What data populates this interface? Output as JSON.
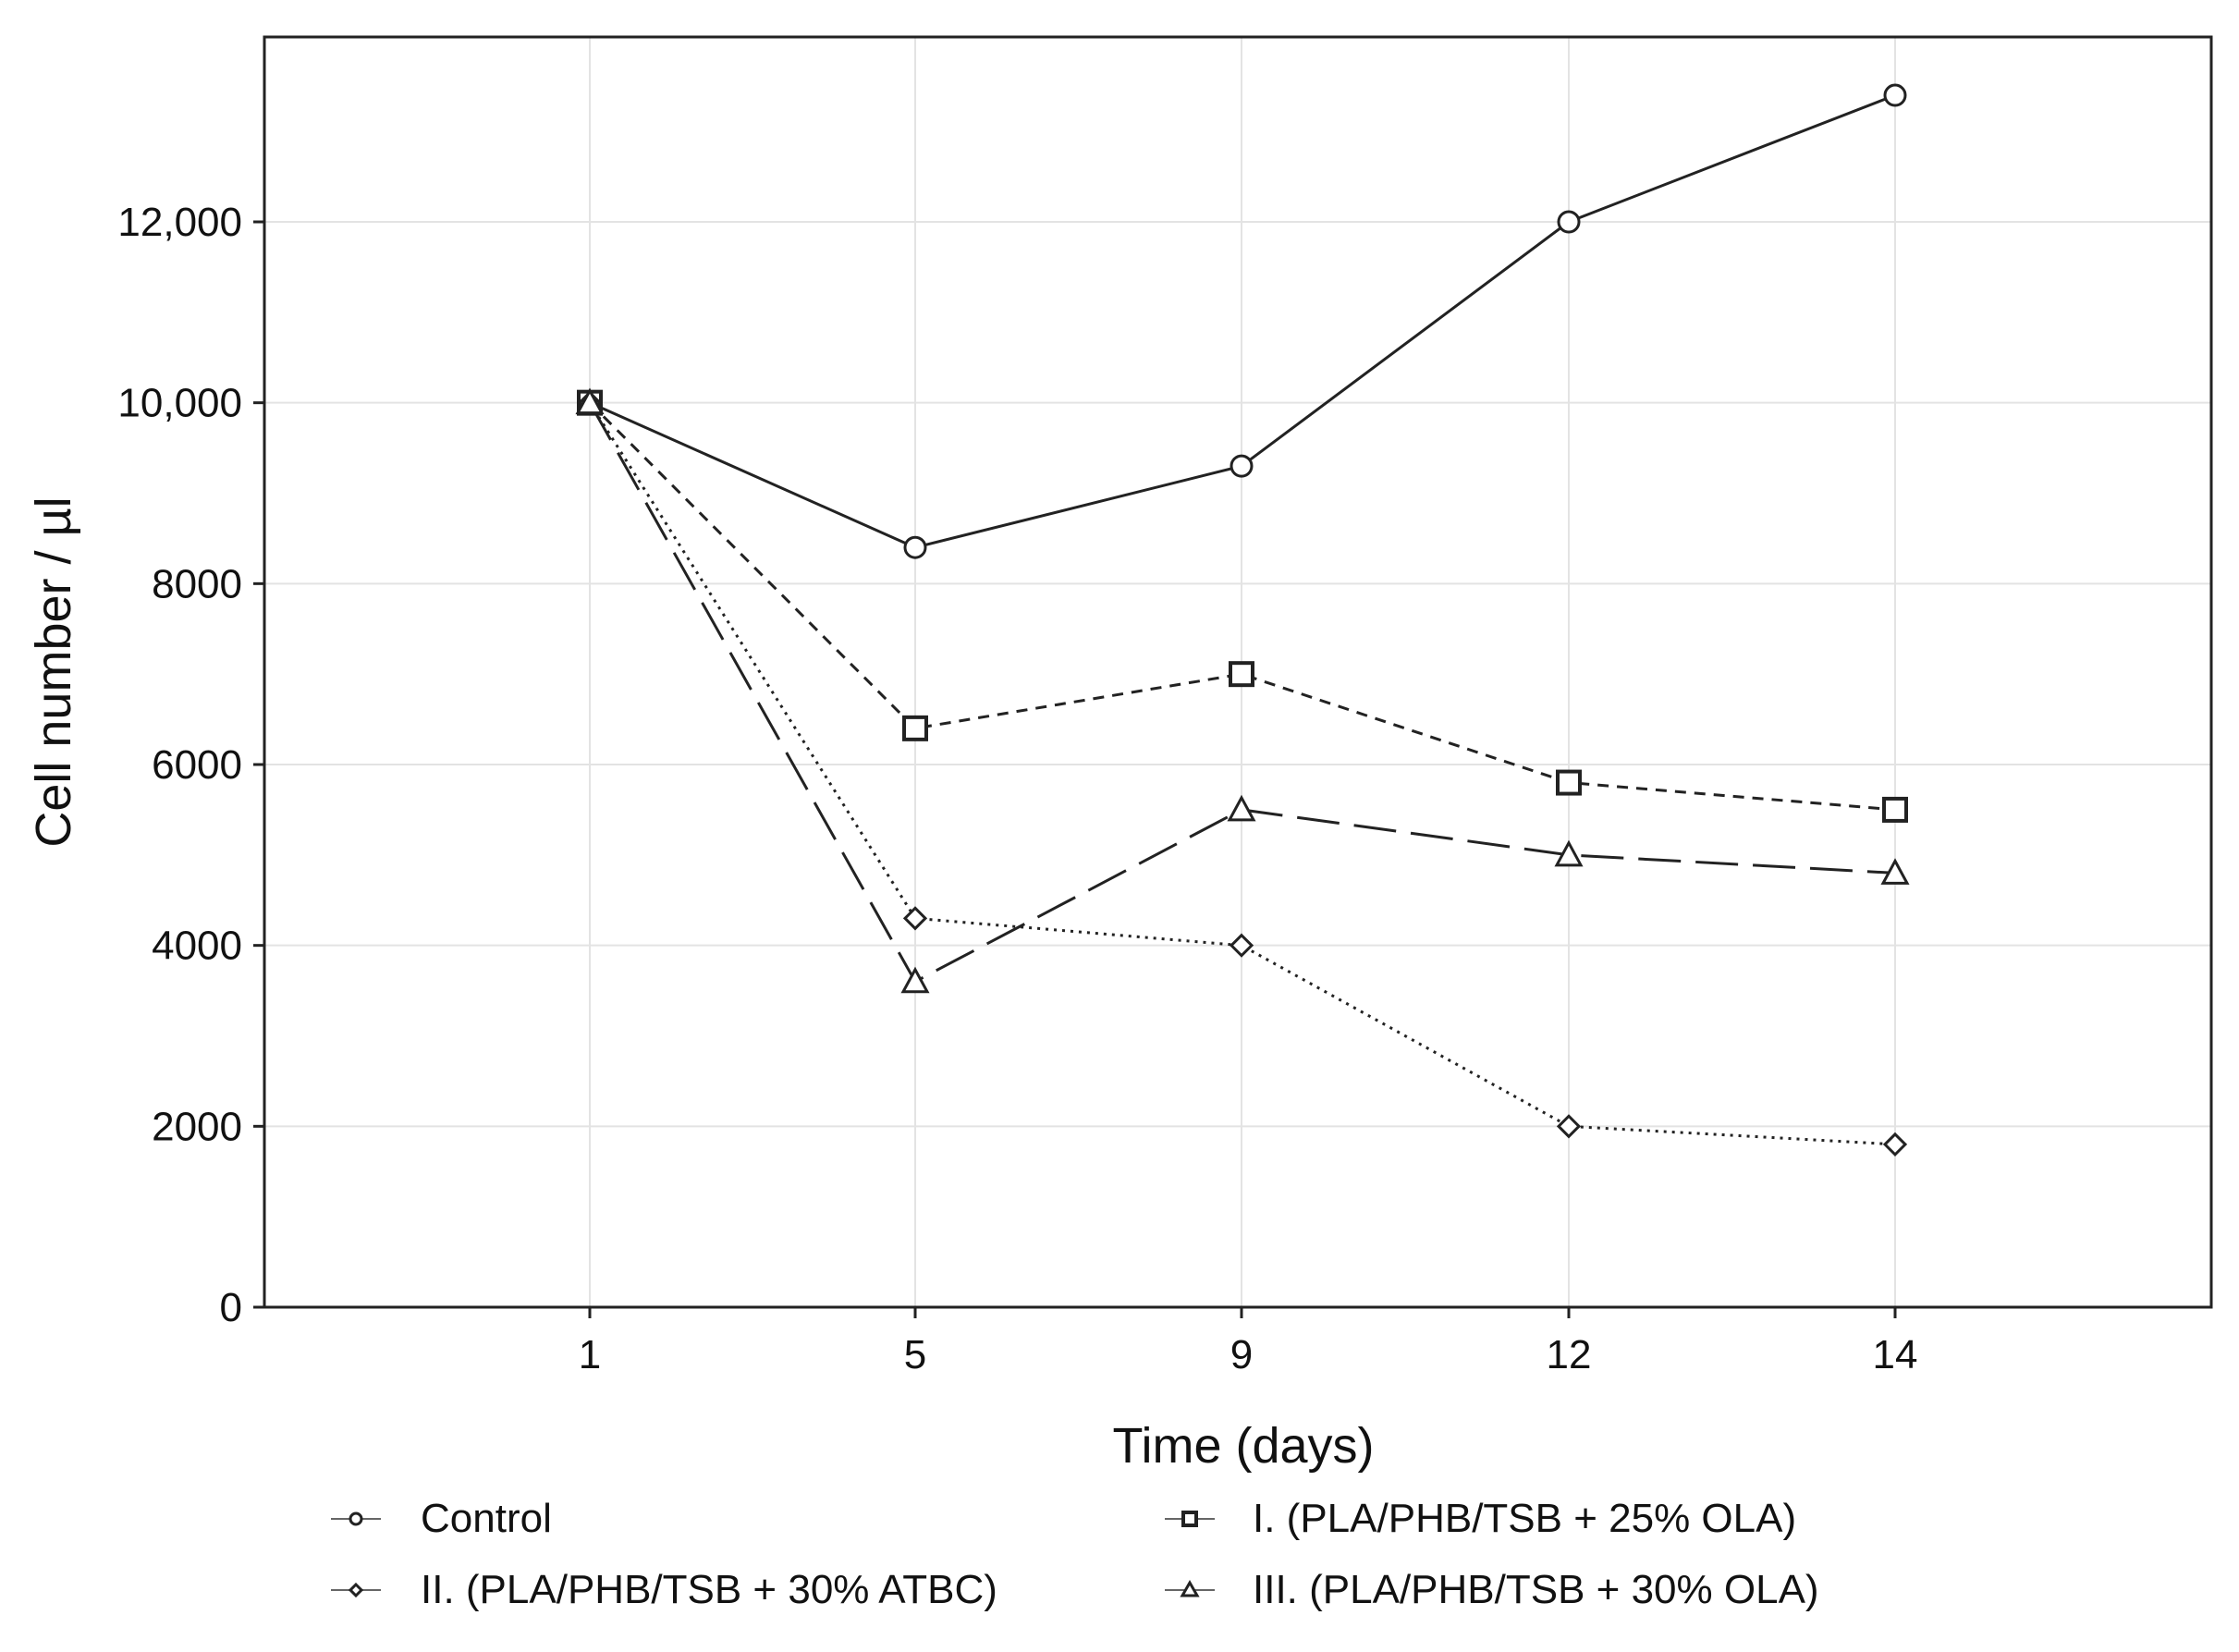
{
  "chart_data": {
    "type": "line",
    "x": [
      1,
      5,
      9,
      12,
      14
    ],
    "x_ticks": [
      "1",
      "5",
      "9",
      "12",
      "14"
    ],
    "y_ticks": [
      "0",
      "2000",
      "4000",
      "6000",
      "8000",
      "10,000",
      "12,000"
    ],
    "ylim": [
      0,
      14000
    ],
    "xlabel": "Time (days)",
    "ylabel": "Cell number / µl",
    "grid": true,
    "legend_position": "bottom",
    "series": [
      {
        "name": "Control",
        "values": [
          10000,
          8400,
          9300,
          12000,
          13400
        ],
        "marker": "circle",
        "dash": "solid"
      },
      {
        "name": "I. (PLA/PHB/TSB + 25% OLA)",
        "values": [
          10000,
          6400,
          7000,
          5800,
          5500
        ],
        "marker": "square",
        "dash": "short-dash"
      },
      {
        "name": "II. (PLA/PHB/TSB + 30% ATBC)",
        "values": [
          10000,
          4300,
          4000,
          2000,
          1800
        ],
        "marker": "diamond",
        "dash": "dotted"
      },
      {
        "name": "III. (PLA/PHB/TSB + 30% OLA)",
        "values": [
          10000,
          3600,
          5500,
          5000,
          4800
        ],
        "marker": "triangle",
        "dash": "long-dash"
      }
    ],
    "colors": {
      "line": "#222222",
      "grid": "#e3e3e3",
      "frame": "#222222"
    }
  }
}
